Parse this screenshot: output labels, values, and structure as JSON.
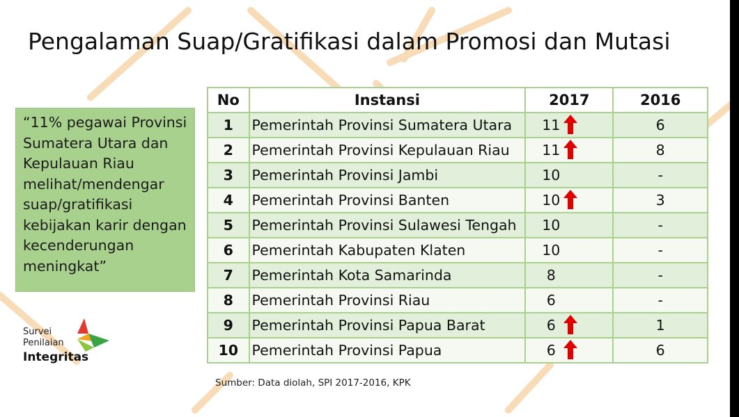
{
  "slide": {
    "title": "Pengalaman Suap/Gratifikasi dalam Promosi dan Mutasi",
    "quote": "“11% pegawai Provinsi Sumatera Utara dan Kepulauan Riau melihat/mendengar suap/gratifikasi kebijakan karir dengan kecenderungan meningkat”",
    "source": "Sumber: Data diolah, SPI 2017-2016, KPK"
  },
  "table": {
    "headers": [
      "No",
      "Instansi",
      "2017",
      "2016"
    ],
    "rows": [
      {
        "no": "1",
        "instansi": "Pemerintah Provinsi Sumatera Utara",
        "y2017": "11",
        "up": true,
        "y2016": "6"
      },
      {
        "no": "2",
        "instansi": "Pemerintah Provinsi Kepulauan Riau",
        "y2017": "11",
        "up": true,
        "y2016": "8"
      },
      {
        "no": "3",
        "instansi": "Pemerintah Provinsi Jambi",
        "y2017": "10",
        "up": false,
        "y2016": "-"
      },
      {
        "no": "4",
        "instansi": "Pemerintah Provinsi Banten",
        "y2017": "10",
        "up": true,
        "y2016": "3"
      },
      {
        "no": "5",
        "instansi": "Pemerintah Provinsi Sulawesi Tengah",
        "y2017": "10",
        "up": false,
        "y2016": "-"
      },
      {
        "no": "6",
        "instansi": "Pemerintah Kabupaten Klaten",
        "y2017": "10",
        "up": false,
        "y2016": "-"
      },
      {
        "no": "7",
        "instansi": "Pemerintah Kota Samarinda",
        "y2017": "8",
        "up": false,
        "y2016": "-"
      },
      {
        "no": "8",
        "instansi": "Pemerintah Provinsi Riau",
        "y2017": "6",
        "up": false,
        "y2016": "-"
      },
      {
        "no": "9",
        "instansi": "Pemerintah Provinsi Papua Barat",
        "y2017": "6",
        "up": true,
        "y2016": "1"
      },
      {
        "no": "10",
        "instansi": "Pemerintah Provinsi Papua",
        "y2017": "6",
        "up": true,
        "y2016": "6"
      }
    ]
  },
  "logo": {
    "line1": "Survei",
    "line2": "Penilaian",
    "line3": "Integritas"
  },
  "colors": {
    "table_border": "#a9d18e",
    "row_shaded": "#e2efda",
    "row_light": "#f5f9f2",
    "quote_bg": "#a9d18e",
    "arrow_red": "#e00000",
    "bg_line": "#f8dcb8"
  },
  "icons": {
    "increase": "red-up-arrow-icon",
    "logo_mark": "spi-logo-mark-icon"
  }
}
